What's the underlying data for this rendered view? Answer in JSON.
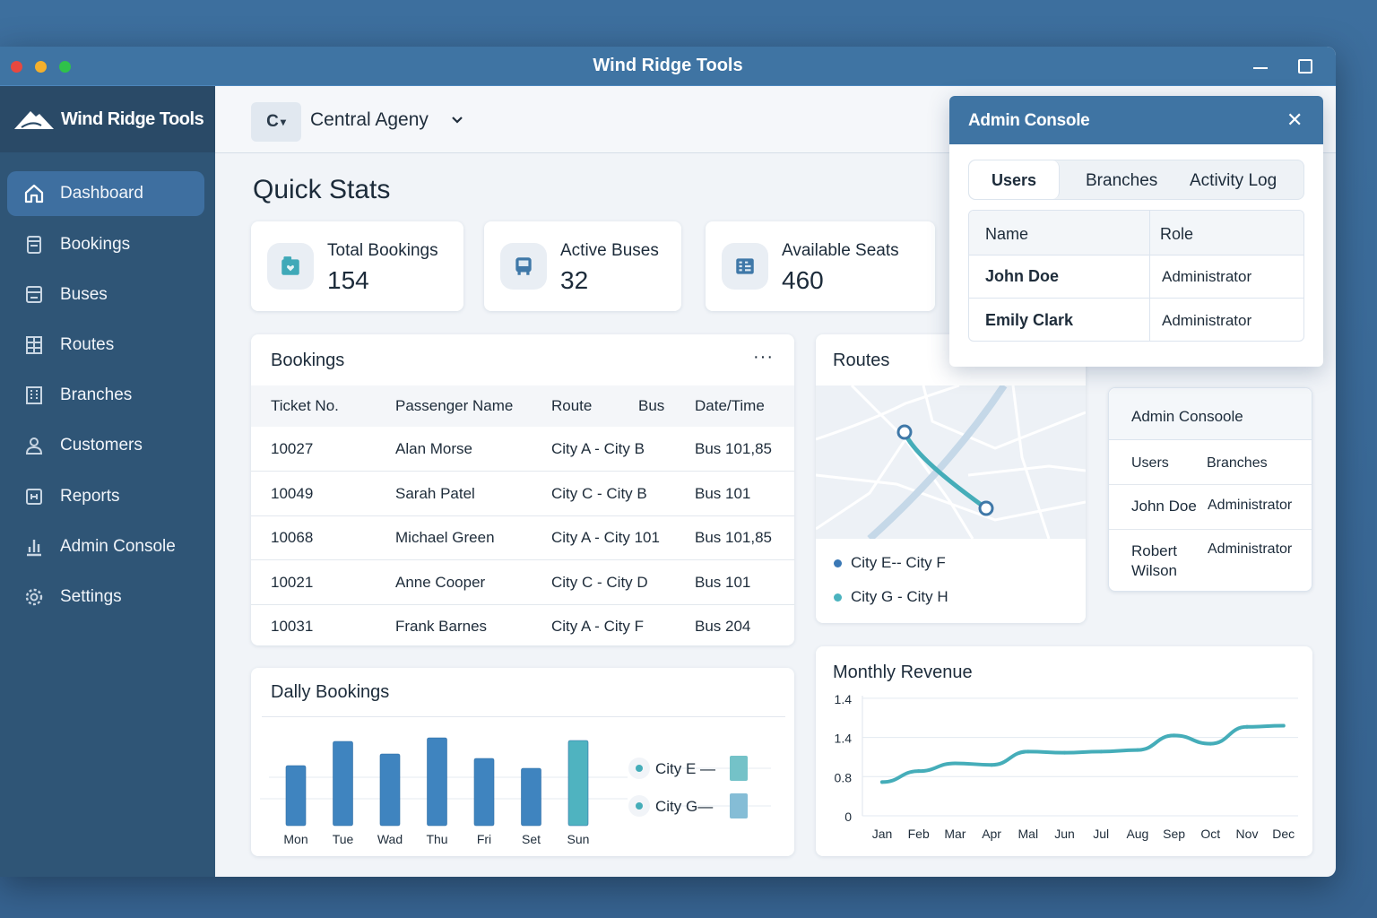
{
  "window": {
    "title": "Wind Ridge Tools"
  },
  "sidebar": {
    "brand": "Wind Ridge Tools",
    "items": [
      {
        "label": "Dashboard",
        "icon": "home-icon",
        "active": true
      },
      {
        "label": "Bookings",
        "icon": "bookings-icon"
      },
      {
        "label": "Buses",
        "icon": "bus-icon"
      },
      {
        "label": "Routes",
        "icon": "routes-icon"
      },
      {
        "label": "Branches",
        "icon": "building-icon"
      },
      {
        "label": "Customers",
        "icon": "user-icon"
      },
      {
        "label": "Reports",
        "icon": "reports-icon"
      },
      {
        "label": "Admin Console",
        "icon": "bar-chart-icon"
      },
      {
        "label": "Settings",
        "icon": "gear-icon"
      }
    ]
  },
  "topbar": {
    "agency_badge": "C",
    "agency_name": "Central Ageny"
  },
  "quick_stats": {
    "title": "Quick Stats",
    "items": [
      {
        "label": "Total Bookings",
        "value": "154",
        "icon": "calendar-icon"
      },
      {
        "label": "Active Buses",
        "value": "32",
        "icon": "bus-icon"
      },
      {
        "label": "Available Seats",
        "value": "460",
        "icon": "seats-icon"
      }
    ]
  },
  "bookings": {
    "title": "Bookings",
    "columns": [
      "Ticket No.",
      "Passenger Name",
      "Route",
      "Bus",
      "Date/Time"
    ],
    "rows": [
      [
        "10027",
        "Alan Morse",
        "City A - City B",
        "",
        "Bus 101,85"
      ],
      [
        "10049",
        "Sarah Patel",
        "City C - City B",
        "",
        "Bus 101"
      ],
      [
        "10068",
        "Michael Green",
        "City A - City 101",
        "",
        "Bus 101,85"
      ],
      [
        "10021",
        "Anne Cooper",
        "City C - City D",
        "",
        "Bus 101"
      ],
      [
        "10031",
        "Frank Barnes",
        "City A - City F",
        "",
        "Bus 204"
      ]
    ]
  },
  "routes": {
    "title": "Routes",
    "items": [
      {
        "label": "City E-- City F",
        "color": "#3a78b5"
      },
      {
        "label": "City G - City H",
        "color": "#4bb3bf"
      }
    ]
  },
  "admin_small": {
    "title": "Admin Consoole",
    "tabs": [
      "Users",
      "Branches"
    ],
    "rows": [
      [
        "John Doe",
        "Administrator"
      ],
      [
        "Robert Wilson",
        "Administrator"
      ]
    ]
  },
  "admin_console": {
    "title": "Admin Console",
    "tabs": [
      "Users",
      "Branches",
      "Activity Log"
    ],
    "active_tab": "Users",
    "columns": [
      "Name",
      "Role"
    ],
    "rows": [
      [
        "John Doe",
        "Administrator"
      ],
      [
        "Emily Clark",
        "Administrator"
      ]
    ]
  },
  "chart_data": [
    {
      "type": "bar",
      "title": "Dally Bookings",
      "categories": [
        "Mon",
        "Tue",
        "Wad",
        "Thu",
        "Fri",
        "Set",
        "Sun"
      ],
      "values": [
        67,
        94,
        80,
        98,
        75,
        64,
        95
      ],
      "colors": [
        "#3f84bf",
        "#3f84bf",
        "#3f84bf",
        "#3f84bf",
        "#3f84bf",
        "#3f84bf",
        "#4fb3c0"
      ],
      "legend": [
        {
          "label": "City E —",
          "color": "#74c2c8"
        },
        {
          "label": "City G—",
          "color": "#85bdd6"
        }
      ],
      "legend_position": "right"
    },
    {
      "type": "line",
      "title": "Monthly Revenue",
      "x": [
        "Jan",
        "Feb",
        "Mar",
        "Apr",
        "Mal",
        "Jun",
        "Jul",
        "Aug",
        "Sep",
        "Oct",
        "Nov",
        "Dec"
      ],
      "y_ticks": [
        "0",
        "0.8",
        "1.4",
        "1.4"
      ],
      "ylim": [
        0,
        3
      ],
      "values": [
        0.86,
        1.14,
        1.34,
        1.3,
        1.64,
        1.61,
        1.64,
        1.68,
        2.05,
        1.84,
        2.27,
        2.3
      ],
      "color": "#45adb9",
      "grid": true
    }
  ]
}
